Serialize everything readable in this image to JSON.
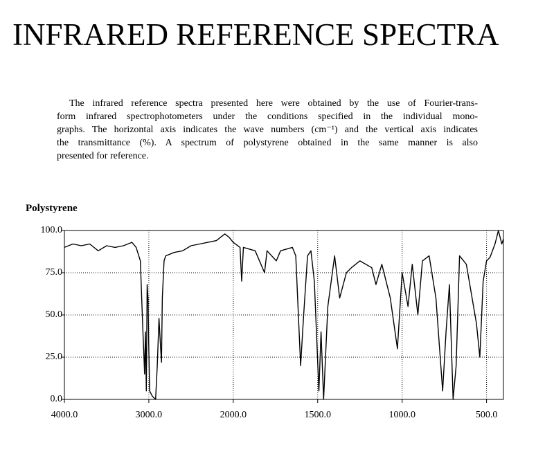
{
  "header": {
    "title": "INFRARED REFERENCE SPECTRA"
  },
  "paragraph": {
    "lines": [
      "The infrared reference spectra presented here were obtained by the use of Fourier-trans-",
      "form infrared spectrophotometers under the conditions specified in the individual mono-",
      "graphs. The horizontal axis indicates the wave numbers (cm⁻¹) and the vertical axis indicates",
      "the transmittance (%). A spectrum of polystyrene obtained in the same manner is also",
      "presented for reference."
    ]
  },
  "chart_data": {
    "type": "line",
    "title": "Polystyrene",
    "color": "#000000",
    "x": [
      4000,
      3900,
      3800,
      3700,
      3600,
      3500,
      3400,
      3300,
      3200,
      3150,
      3100,
      3085,
      3070,
      3060,
      3050,
      3040,
      3030,
      3020,
      3010,
      3000,
      2990,
      2960,
      2940,
      2920,
      2900,
      2880,
      2860,
      2850,
      2840,
      2820,
      2800,
      2700,
      2600,
      2500,
      2400,
      2300,
      2200,
      2100,
      2050,
      2000,
      1960,
      1950,
      1940,
      1870,
      1815,
      1800,
      1745,
      1720,
      1650,
      1630,
      1601,
      1583,
      1560,
      1540,
      1520,
      1493,
      1480,
      1465,
      1440,
      1400,
      1370,
      1330,
      1300,
      1250,
      1180,
      1155,
      1120,
      1070,
      1028,
      1000,
      965,
      940,
      907,
      880,
      840,
      800,
      760,
      740,
      720,
      698,
      680,
      660,
      620,
      560,
      540,
      520,
      500,
      480,
      450,
      430,
      410,
      400
    ],
    "values": [
      90,
      92,
      91,
      92,
      88,
      91,
      90,
      91,
      93,
      90,
      82,
      60,
      40,
      28,
      15,
      40,
      5,
      68,
      60,
      30,
      5,
      2,
      1,
      0,
      20,
      48,
      30,
      22,
      60,
      82,
      85,
      87,
      88,
      91,
      92,
      93,
      94,
      98,
      96,
      93,
      90,
      70,
      90,
      88,
      75,
      88,
      82,
      88,
      90,
      85,
      20,
      50,
      85,
      88,
      70,
      5,
      40,
      0,
      55,
      85,
      60,
      75,
      78,
      82,
      78,
      68,
      80,
      60,
      30,
      75,
      55,
      80,
      50,
      82,
      85,
      60,
      5,
      40,
      68,
      0,
      20,
      85,
      80,
      45,
      25,
      70,
      82,
      84,
      92,
      100,
      92,
      95
    ],
    "xlim": [
      4000,
      400
    ],
    "x_scale_break": 2000,
    "x_scale_ratio": 2,
    "xticks": [
      {
        "value": 4000,
        "label": "4000.0"
      },
      {
        "value": 3000,
        "label": "3000.0"
      },
      {
        "value": 2000,
        "label": "2000.0"
      },
      {
        "value": 1500,
        "label": "1500.0"
      },
      {
        "value": 1000,
        "label": "1000.0"
      },
      {
        "value": 500,
        "label": "500.0"
      }
    ],
    "ylim": [
      0,
      100
    ],
    "yticks": [
      {
        "value": 0,
        "label": "0.0"
      },
      {
        "value": 25,
        "label": "25.0"
      },
      {
        "value": 50,
        "label": "50.0"
      },
      {
        "value": 75,
        "label": "75.0"
      },
      {
        "value": 100,
        "label": "100.0"
      }
    ],
    "grid": true
  }
}
